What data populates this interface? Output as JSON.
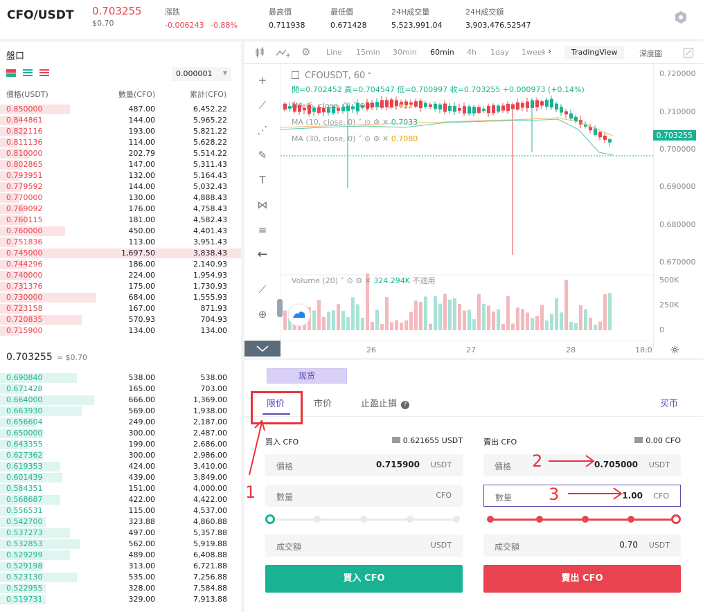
{
  "header": {
    "pair": "CFO/USDT",
    "last_price": "0.703255",
    "last_price_usd": "$0.70",
    "change_label": "漲跌",
    "change_value": "-0.006243",
    "change_pct": "-0.88%",
    "high_label": "最高價",
    "high_value": "0.711938",
    "low_label": "最低價",
    "low_value": "0.671428",
    "vol_label": "24H成交量",
    "vol_value": "5,523,991.04",
    "amt_label": "24H成交額",
    "amt_value": "3,903,476.52547"
  },
  "orderbook": {
    "title": "盤口",
    "precision": "0.000001",
    "col_price": "價格(USDT)",
    "col_qty": "數量(CFO)",
    "col_total": "累計(CFO)",
    "asks": [
      {
        "p": "0.850000",
        "q": "487.00",
        "c": "6,452.22",
        "d": 0.29
      },
      {
        "p": "0.844861",
        "q": "144.00",
        "c": "5,965.22",
        "d": 0.09
      },
      {
        "p": "0.822116",
        "q": "193.00",
        "c": "5,821.22",
        "d": 0.11
      },
      {
        "p": "0.811136",
        "q": "114.00",
        "c": "5,628.22",
        "d": 0.07
      },
      {
        "p": "0.810000",
        "q": "202.79",
        "c": "5,514.22",
        "d": 0.12
      },
      {
        "p": "0.802865",
        "q": "147.00",
        "c": "5,311.43",
        "d": 0.09
      },
      {
        "p": "0.793951",
        "q": "132.00",
        "c": "5,164.43",
        "d": 0.08
      },
      {
        "p": "0.779592",
        "q": "144.00",
        "c": "5,032.43",
        "d": 0.09
      },
      {
        "p": "0.770000",
        "q": "130.00",
        "c": "4,888.43",
        "d": 0.08
      },
      {
        "p": "0.769092",
        "q": "176.00",
        "c": "4,758.43",
        "d": 0.1
      },
      {
        "p": "0.760115",
        "q": "181.00",
        "c": "4,582.43",
        "d": 0.11
      },
      {
        "p": "0.760000",
        "q": "450.00",
        "c": "4,401.43",
        "d": 0.27
      },
      {
        "p": "0.751836",
        "q": "113.00",
        "c": "3,951.43",
        "d": 0.07
      },
      {
        "p": "0.745000",
        "q": "1,697.50",
        "c": "3,838.43",
        "d": 1.0
      },
      {
        "p": "0.744296",
        "q": "186.00",
        "c": "2,140.93",
        "d": 0.11
      },
      {
        "p": "0.740000",
        "q": "224.00",
        "c": "1,954.93",
        "d": 0.13
      },
      {
        "p": "0.731376",
        "q": "175.00",
        "c": "1,730.93",
        "d": 0.1
      },
      {
        "p": "0.730000",
        "q": "684.00",
        "c": "1,555.93",
        "d": 0.4
      },
      {
        "p": "0.723158",
        "q": "167.00",
        "c": "871.93",
        "d": 0.1
      },
      {
        "p": "0.720835",
        "q": "570.93",
        "c": "704.93",
        "d": 0.34
      },
      {
        "p": "0.715900",
        "q": "134.00",
        "c": "134.00",
        "d": 0.08
      }
    ],
    "mid_price": "0.703255",
    "mid_usd": "≈ $0.70",
    "bids": [
      {
        "p": "0.690840",
        "q": "538.00",
        "c": "538.00",
        "d": 0.32
      },
      {
        "p": "0.671428",
        "q": "165.00",
        "c": "703.00",
        "d": 0.1
      },
      {
        "p": "0.664000",
        "q": "666.00",
        "c": "1,369.00",
        "d": 0.39
      },
      {
        "p": "0.663930",
        "q": "569.00",
        "c": "1,938.00",
        "d": 0.34
      },
      {
        "p": "0.656604",
        "q": "249.00",
        "c": "2,187.00",
        "d": 0.15
      },
      {
        "p": "0.650000",
        "q": "300.00",
        "c": "2,487.00",
        "d": 0.18
      },
      {
        "p": "0.643355",
        "q": "199.00",
        "c": "2,686.00",
        "d": 0.12
      },
      {
        "p": "0.627362",
        "q": "300.00",
        "c": "2,986.00",
        "d": 0.18
      },
      {
        "p": "0.619353",
        "q": "424.00",
        "c": "3,410.00",
        "d": 0.25
      },
      {
        "p": "0.601439",
        "q": "439.00",
        "c": "3,849.00",
        "d": 0.26
      },
      {
        "p": "0.584351",
        "q": "151.00",
        "c": "4,000.00",
        "d": 0.09
      },
      {
        "p": "0.568687",
        "q": "422.00",
        "c": "4,422.00",
        "d": 0.25
      },
      {
        "p": "0.556531",
        "q": "115.00",
        "c": "4,537.00",
        "d": 0.07
      },
      {
        "p": "0.542700",
        "q": "323.88",
        "c": "4,860.88",
        "d": 0.19
      },
      {
        "p": "0.537273",
        "q": "497.00",
        "c": "5,357.88",
        "d": 0.29
      },
      {
        "p": "0.532853",
        "q": "562.00",
        "c": "5,919.88",
        "d": 0.33
      },
      {
        "p": "0.529299",
        "q": "489.00",
        "c": "6,408.88",
        "d": 0.29
      },
      {
        "p": "0.529198",
        "q": "313.00",
        "c": "6,721.88",
        "d": 0.18
      },
      {
        "p": "0.523130",
        "q": "535.00",
        "c": "7,256.88",
        "d": 0.32
      },
      {
        "p": "0.522955",
        "q": "328.00",
        "c": "7,584.88",
        "d": 0.19
      },
      {
        "p": "0.519731",
        "q": "329.00",
        "c": "7,913.88",
        "d": 0.19
      }
    ]
  },
  "chart": {
    "toolbar": {
      "line": "Line",
      "m15": "15min",
      "m30": "30min",
      "m60": "60min",
      "h4": "4h",
      "d1": "1day",
      "w1": "1week",
      "tradingview": "TradingView",
      "depth": "深度圖"
    },
    "symbol": "CFOUSDT, 60",
    "ohlc": "開=0.702452 高=0.704547 低=0.700997 收=0.703255 +0.000973 (+0.14%)",
    "ma5_label": "MA (5, close, 0)",
    "ma5_value": "0.7032",
    "ma10_label": "MA (10, close, 0)",
    "ma10_value": "0.7033",
    "ma30_label": "MA (30, close, 0)",
    "ma30_value": "0.7080",
    "volume_label": "Volume (20)",
    "volume_value": "324.294K",
    "volume_na": "不適用",
    "y_ticks": [
      "0.720000",
      "0.710000",
      "0.700000",
      "0.690000",
      "0.680000",
      "0.670000"
    ],
    "current_tag": "0.703255",
    "vol_ticks": [
      "500K",
      "250K",
      "0"
    ],
    "x_ticks": [
      "26",
      "27",
      "28",
      "18:0"
    ]
  },
  "trade": {
    "spot_label": "现货",
    "tabs": {
      "limit": "限价",
      "market": "市价",
      "stop": "止盈止損",
      "buy_coin": "买币"
    },
    "buy": {
      "title": "買入 CFO",
      "balance": "0.621655 USDT",
      "price_label": "價格",
      "price_value": "0.715900",
      "price_unit": "USDT",
      "qty_label": "數量",
      "qty_unit": "CFO",
      "total_label": "成交額",
      "total_unit": "USDT",
      "button": "買入 CFO"
    },
    "sell": {
      "title": "賣出 CFO",
      "balance": "0.00 CFO",
      "price_label": "價格",
      "price_value": "0.705000",
      "price_unit": "USDT",
      "qty_label": "數量",
      "qty_value": "1.00",
      "qty_unit": "CFO",
      "total_label": "成交額",
      "total_value": "0.70",
      "total_unit": "USDT",
      "button": "賣出 CFO"
    }
  },
  "annotations": {
    "n1": "1",
    "n2": "2",
    "n3": "3"
  },
  "colors": {
    "up": "#19b393",
    "down": "#e8434e",
    "accent": "#5b4ab0",
    "annotation": "#e8323a"
  }
}
